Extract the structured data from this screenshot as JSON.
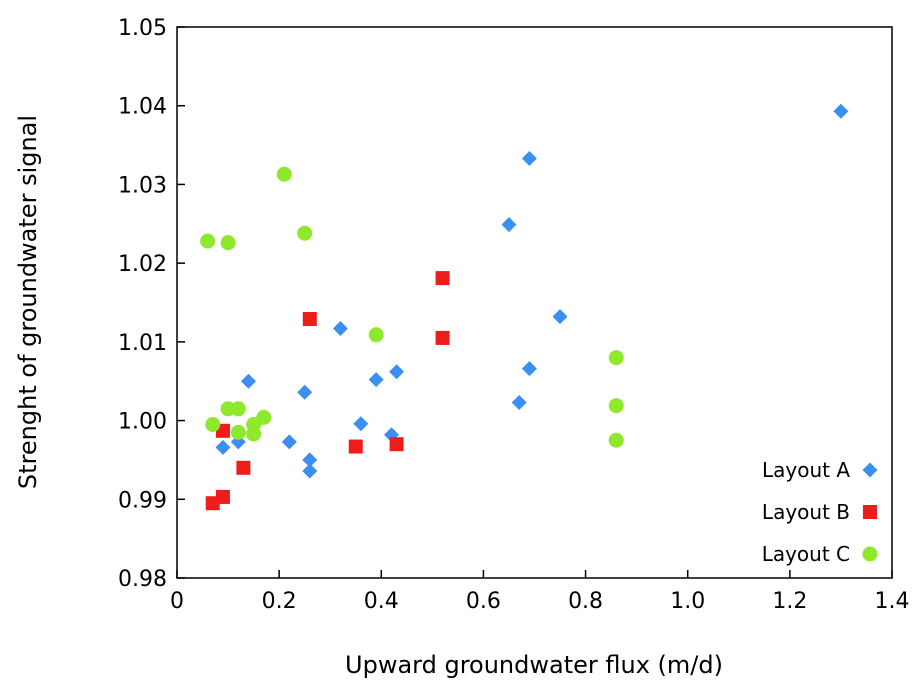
{
  "chart_data": {
    "type": "scatter",
    "title": "",
    "xlabel": "Upward groundwater flux (m/d)",
    "ylabel": "Strenght of groundwater signal",
    "xlim": [
      0,
      1.4
    ],
    "ylim": [
      0.98,
      1.05
    ],
    "x_ticks": [
      0,
      0.2,
      0.4,
      0.6,
      0.8,
      1.0,
      1.2,
      1.4
    ],
    "x_tick_labels": [
      "0",
      "0.2",
      "0.4",
      "0.6",
      "0.8",
      "1.0",
      "1.2",
      "1.4"
    ],
    "y_ticks": [
      0.98,
      0.99,
      1.0,
      1.01,
      1.02,
      1.03,
      1.04,
      1.05
    ],
    "y_tick_labels": [
      "0.98",
      "0.99",
      "1.00",
      "1.01",
      "1.02",
      "1.03",
      "1.04",
      "1.05"
    ],
    "grid": false,
    "legend_position": "bottom-right",
    "series": [
      {
        "name": "Layout A",
        "marker": "diamond",
        "color": "#3b8ff0",
        "points": [
          [
            1.3,
            1.0393
          ],
          [
            0.69,
            1.0333
          ],
          [
            0.65,
            1.0249
          ],
          [
            0.75,
            1.0132
          ],
          [
            0.32,
            1.0117
          ],
          [
            0.69,
            1.0066
          ],
          [
            0.43,
            1.0062
          ],
          [
            0.39,
            1.0052
          ],
          [
            0.14,
            1.005
          ],
          [
            0.25,
            1.0036
          ],
          [
            0.67,
            1.0023
          ],
          [
            0.36,
            0.9996
          ],
          [
            0.42,
            0.9982
          ],
          [
            0.22,
            0.9973
          ],
          [
            0.12,
            0.9973
          ],
          [
            0.09,
            0.9966
          ],
          [
            0.26,
            0.995
          ],
          [
            0.26,
            0.9936
          ]
        ]
      },
      {
        "name": "Layout B",
        "marker": "square",
        "color": "#ef1c1c",
        "points": [
          [
            0.52,
            1.0181
          ],
          [
            0.26,
            1.0129
          ],
          [
            0.52,
            1.0105
          ],
          [
            0.09,
            0.9987
          ],
          [
            0.35,
            0.9967
          ],
          [
            0.43,
            0.997
          ],
          [
            0.13,
            0.994
          ],
          [
            0.09,
            0.9903
          ],
          [
            0.07,
            0.9895
          ]
        ]
      },
      {
        "name": "Layout C",
        "marker": "circle",
        "color": "#8ee82c",
        "points": [
          [
            0.21,
            1.0313
          ],
          [
            0.06,
            1.0228
          ],
          [
            0.1,
            1.0226
          ],
          [
            0.25,
            1.0238
          ],
          [
            0.39,
            1.0109
          ],
          [
            0.86,
            1.008
          ],
          [
            0.86,
            1.0019
          ],
          [
            0.86,
            0.9975
          ],
          [
            0.1,
            1.0015
          ],
          [
            0.12,
            1.0015
          ],
          [
            0.07,
            0.9995
          ],
          [
            0.12,
            0.9985
          ],
          [
            0.15,
            0.9995
          ],
          [
            0.15,
            0.9983
          ],
          [
            0.17,
            1.0004
          ]
        ]
      }
    ]
  }
}
